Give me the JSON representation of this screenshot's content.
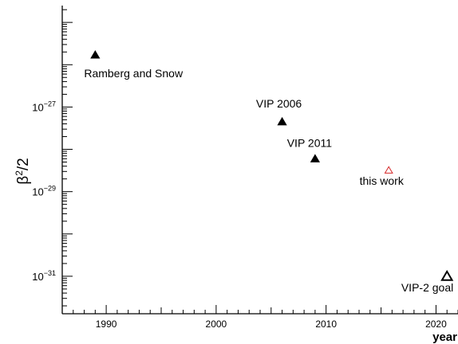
{
  "chart_data": {
    "type": "scatter",
    "title": "",
    "xlabel": "year",
    "ylabel": "β²/2",
    "ylabel_parts": {
      "base": "β",
      "exponent": "2",
      "tail": "/2"
    },
    "xlim": [
      1986,
      2022
    ],
    "ylim": [
      1.3e-32,
      2.5e-25
    ],
    "y_scale": "log",
    "x_ticks": [
      1990,
      2000,
      2010,
      2020
    ],
    "y_ticks": [
      {
        "value": 1e-27,
        "base": "10",
        "exp": "−27"
      },
      {
        "value": 1e-29,
        "base": "10",
        "exp": "−29"
      },
      {
        "value": 1e-31,
        "base": "10",
        "exp": "−31"
      }
    ],
    "grid": false,
    "legend": "none",
    "points": [
      {
        "label": "Ramberg and Snow",
        "x": 1989,
        "y": 1.7e-26,
        "marker": "filled-triangle",
        "color": "#000000"
      },
      {
        "label": "VIP 2006",
        "x": 2006,
        "y": 4.5e-28,
        "marker": "filled-triangle",
        "color": "#000000"
      },
      {
        "label": "VIP 2011",
        "x": 2009,
        "y": 6e-29,
        "marker": "filled-triangle",
        "color": "#000000"
      },
      {
        "label": "this work",
        "x": 2015.7,
        "y": 3.2e-29,
        "marker": "open-triangle",
        "color": "#d62728"
      },
      {
        "label": "VIP-2 goal",
        "x": 2021,
        "y": 1e-31,
        "marker": "open-triangle-bold",
        "color": "#000000"
      }
    ]
  }
}
